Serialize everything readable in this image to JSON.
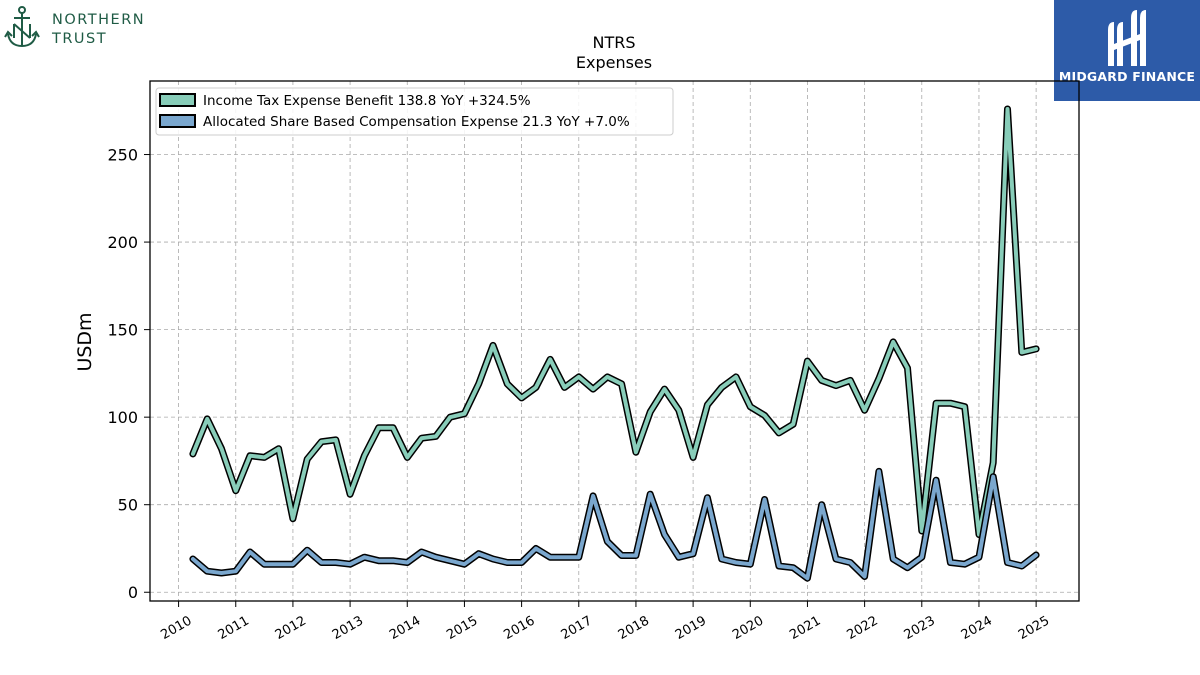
{
  "branding": {
    "left_logo_line1": "NORTHERN",
    "left_logo_line2": "TRUST",
    "right_logo_text": "MIDGARD FINANCE"
  },
  "chart_data": {
    "type": "line",
    "title": "NTRS",
    "subtitle": "Expenses",
    "ylabel": "USDm",
    "xlabel": "",
    "ylim": [
      -5,
      292
    ],
    "xlim": [
      2009.5,
      2025.75
    ],
    "yticks": [
      0,
      50,
      100,
      150,
      200,
      250
    ],
    "xticks": [
      "2010",
      "2011",
      "2012",
      "2013",
      "2014",
      "2015",
      "2016",
      "2017",
      "2018",
      "2019",
      "2020",
      "2021",
      "2022",
      "2023",
      "2024",
      "2025"
    ],
    "grid": true,
    "legend_position": "top-left",
    "series": [
      {
        "name": "Income Tax Expense Benefit",
        "legend": "Income Tax Expense Benefit  138.8 YoY +324.5%",
        "color": "#88cdb9",
        "x": [
          2010.25,
          2010.5,
          2010.75,
          2011.0,
          2011.25,
          2011.5,
          2011.75,
          2012.0,
          2012.25,
          2012.5,
          2012.75,
          2013.0,
          2013.25,
          2013.5,
          2013.75,
          2014.0,
          2014.25,
          2014.5,
          2014.75,
          2015.0,
          2015.25,
          2015.5,
          2015.75,
          2016.0,
          2016.25,
          2016.5,
          2016.75,
          2017.0,
          2017.25,
          2017.5,
          2017.75,
          2018.0,
          2018.25,
          2018.5,
          2018.75,
          2019.0,
          2019.25,
          2019.5,
          2019.75,
          2020.0,
          2020.25,
          2020.5,
          2020.75,
          2021.0,
          2021.25,
          2021.5,
          2021.75,
          2022.0,
          2022.25,
          2022.5,
          2022.75,
          2023.0,
          2023.25,
          2023.5,
          2023.75,
          2024.0,
          2024.25,
          2024.5,
          2024.75,
          2025.0
        ],
        "values": [
          79,
          99,
          82,
          58,
          78,
          77,
          82,
          42,
          76,
          86,
          87,
          56,
          78,
          94,
          94,
          77,
          88,
          89,
          100,
          102,
          119,
          141,
          119,
          111,
          117,
          133,
          117,
          123,
          116,
          123,
          119,
          80,
          103,
          116,
          104,
          77,
          107,
          117,
          123,
          106,
          101,
          91,
          96,
          132,
          121,
          118,
          121,
          104,
          122,
          143,
          128,
          35,
          108,
          108,
          106,
          33,
          74,
          276,
          137,
          139
        ]
      },
      {
        "name": "Allocated Share Based Compensation Expense",
        "legend": "Allocated Share Based Compensation Expense  21.3 YoY +7.0%",
        "color": "#7aa7ce",
        "x": [
          2010.25,
          2010.5,
          2010.75,
          2011.0,
          2011.25,
          2011.5,
          2011.75,
          2012.0,
          2012.25,
          2012.5,
          2012.75,
          2013.0,
          2013.25,
          2013.5,
          2013.75,
          2014.0,
          2014.25,
          2014.5,
          2014.75,
          2015.0,
          2015.25,
          2015.5,
          2015.75,
          2016.0,
          2016.25,
          2016.5,
          2016.75,
          2017.0,
          2017.25,
          2017.5,
          2017.75,
          2018.0,
          2018.25,
          2018.5,
          2018.75,
          2019.0,
          2019.25,
          2019.5,
          2019.75,
          2020.0,
          2020.25,
          2020.5,
          2020.75,
          2021.0,
          2021.25,
          2021.5,
          2021.75,
          2022.0,
          2022.25,
          2022.5,
          2022.75,
          2023.0,
          2023.25,
          2023.5,
          2023.75,
          2024.0,
          2024.25,
          2024.5,
          2024.75,
          2025.0
        ],
        "values": [
          19,
          12,
          11,
          12,
          23,
          16,
          16,
          16,
          24,
          17,
          17,
          16,
          20,
          18,
          18,
          17,
          23,
          20,
          18,
          16,
          22,
          19,
          17,
          17,
          25,
          20,
          20,
          20,
          55,
          29,
          21,
          21,
          56,
          33,
          20,
          22,
          54,
          19,
          17,
          16,
          53,
          15,
          14,
          8,
          50,
          19,
          17,
          9,
          69,
          19,
          14,
          20,
          64,
          17,
          16,
          20,
          66,
          17,
          15,
          21.3
        ]
      }
    ]
  }
}
